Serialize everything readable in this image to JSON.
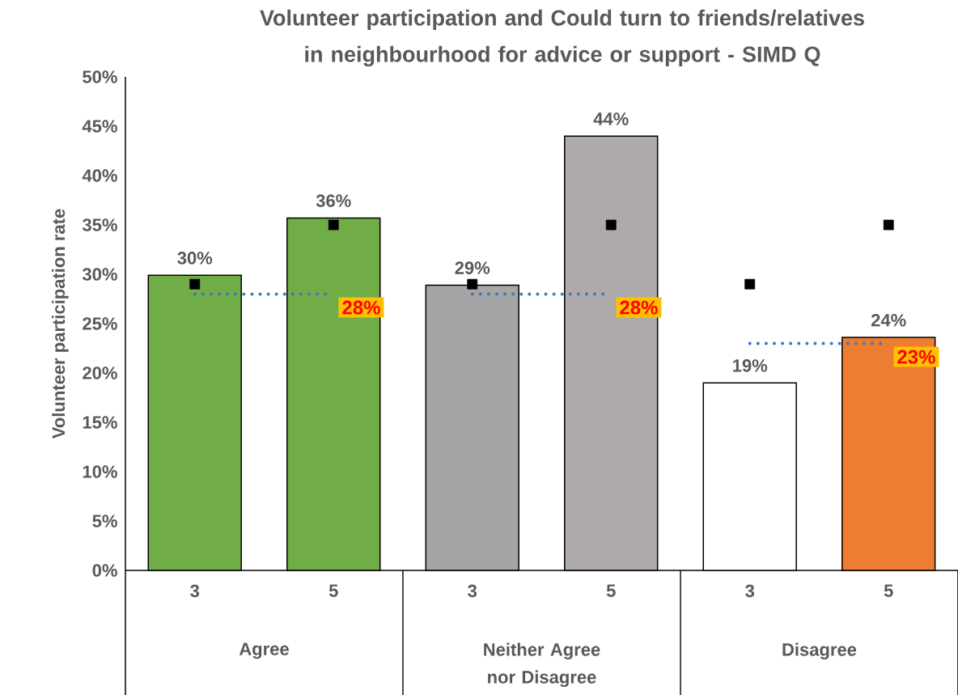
{
  "chart_data": {
    "type": "bar",
    "title": "Volunteer participation and Could turn to friends/relatives in neighbourhood for advice or support - SIMD Q",
    "ylabel": "Volunteer participation rate",
    "categories": [
      "3",
      "5",
      "3",
      "5",
      "3",
      "5"
    ],
    "series": [
      {
        "colors": [
          "#70ad47",
          "#70ad47",
          "#a5a5a5",
          "#aeaaaa",
          "#ffffff",
          "#ed7d31"
        ],
        "values": [
          29.9,
          35.7,
          28.9,
          44,
          19,
          23.6
        ],
        "value_labels": [
          "30%",
          "36%",
          "29%",
          "44%",
          "19%",
          "24%"
        ]
      },
      {
        "type": "scatter",
        "color": "#000000",
        "marker": "square",
        "values": [
          29,
          35,
          29,
          35,
          29,
          35
        ]
      },
      {
        "type": "line",
        "color": "#4472c4",
        "line_style": "dotted",
        "values": [
          28,
          28,
          28,
          28,
          23,
          23
        ],
        "value_labels": [
          null,
          "28%",
          null,
          "28%",
          null,
          "23%"
        ]
      }
    ],
    "ylim": [
      0,
      50
    ],
    "yticks": [
      {
        "value": 0,
        "label": "0%"
      },
      {
        "value": 5,
        "label": "5%"
      },
      {
        "value": 10,
        "label": "10%"
      },
      {
        "value": 15,
        "label": "15%"
      },
      {
        "value": 20,
        "label": "20%"
      },
      {
        "value": 25,
        "label": "25%"
      },
      {
        "value": 30,
        "label": "30%"
      },
      {
        "value": 35,
        "label": "35%"
      },
      {
        "value": 40,
        "label": "40%"
      },
      {
        "value": 45,
        "label": "45%"
      },
      {
        "value": 50,
        "label": "50%"
      }
    ],
    "annotations": [
      "Agree",
      "Neither Agree nor Disagree",
      "Disagree"
    ]
  }
}
